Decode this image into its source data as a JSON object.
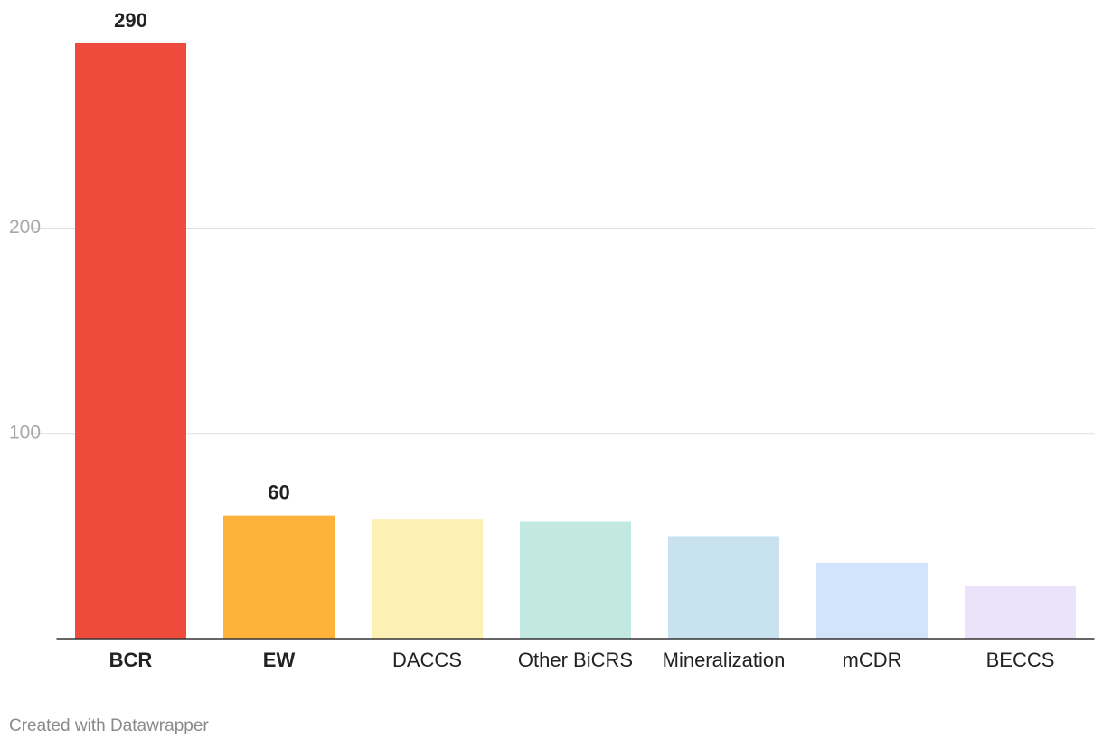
{
  "chart_data": {
    "type": "bar",
    "categories": [
      "BCR",
      "EW",
      "DACCS",
      "Other BiCRS",
      "Mineralization",
      "mCDR",
      "BECCS"
    ],
    "values": [
      290,
      60,
      58,
      57,
      50,
      37,
      25.5
    ],
    "colors": [
      "#ef4b3c",
      "#fdb23a",
      "#fdf0b5",
      "#c2e8df",
      "#c8e3ef",
      "#d2e4fb",
      "#ebe3f9"
    ],
    "highlight": [
      true,
      true,
      false,
      false,
      false,
      false,
      false
    ],
    "ylim": [
      0,
      290
    ],
    "yticks": [
      100,
      200
    ],
    "grid": true,
    "credit": "Created with Datawrapper"
  }
}
